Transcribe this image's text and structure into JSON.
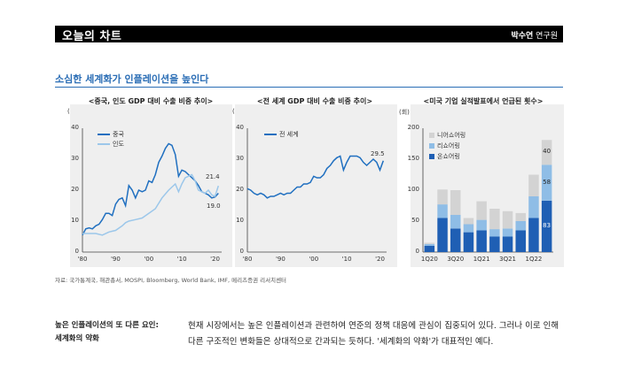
{
  "header": {
    "title": "오늘의 차트",
    "author_name": "박수연",
    "author_role": "연구원"
  },
  "headline": "소심한 세계화가 인플레이션을 높인다",
  "source": "자료: 국가통계국, 해관총서, MOSPI, Bloomberg, World Bank, IMF, 메리츠증권 리서치센터",
  "sidebar": {
    "line1": "높은 인플레이션의 또 다른 요인:",
    "line2": "세계화의 약화"
  },
  "body_text": "현재 시장에서는 높은 인플레이션과 관련하여 연준의 정책 대응에 관심이 집중되어 있다. 그러나 이로 인해 다른 구조적인 변화들은 상대적으로 간과되는 듯하다. '세계화의 약화'가 대표적인 예다.",
  "colors": {
    "accent": "#2a6db5",
    "china": "#1f6fc0",
    "india": "#9cc7ea",
    "world": "#1f6fc0",
    "near": "#d3d3d3",
    "reshore": "#8fbde6",
    "onshore": "#1f5fb4"
  },
  "chart_data": [
    {
      "type": "line",
      "title": "<중국, 인도 GDP 대비 수출 비중 추이>",
      "ylabel": "(%)",
      "ylim": [
        0,
        40
      ],
      "yticks": [
        "0",
        "10",
        "20",
        "30",
        "40"
      ],
      "xlim": [
        1980,
        2022
      ],
      "xticks": [
        {
          "v": 1980,
          "label": "'80"
        },
        {
          "v": 1990,
          "label": "'90"
        },
        {
          "v": 2000,
          "label": "'00"
        },
        {
          "v": 2010,
          "label": "'10"
        },
        {
          "v": 2020,
          "label": "'20"
        }
      ],
      "series": [
        {
          "name": "중국",
          "color": "#1f6fc0",
          "x": [
            1980,
            1981,
            1982,
            1983,
            1984,
            1985,
            1986,
            1987,
            1988,
            1989,
            1990,
            1991,
            1992,
            1993,
            1994,
            1995,
            1996,
            1997,
            1998,
            1999,
            2000,
            2001,
            2002,
            2003,
            2004,
            2005,
            2006,
            2007,
            2008,
            2009,
            2010,
            2011,
            2012,
            2013,
            2014,
            2015,
            2016,
            2017,
            2018,
            2019,
            2020,
            2021
          ],
          "values": [
            5.5,
            7.5,
            7.8,
            7.5,
            8.5,
            9.0,
            10.5,
            12.5,
            12.5,
            11.8,
            15.5,
            17.0,
            17.5,
            15.0,
            21.5,
            20.0,
            17.5,
            20.0,
            19.5,
            20.0,
            23.0,
            22.5,
            25.0,
            29.0,
            31.0,
            33.5,
            35.0,
            34.5,
            31.5,
            24.5,
            26.5,
            26.0,
            25.0,
            24.0,
            23.0,
            21.5,
            19.5,
            19.0,
            18.5,
            17.5,
            17.8,
            19.0
          ]
        },
        {
          "name": "인도",
          "color": "#9cc7ea",
          "x": [
            1980,
            1982,
            1984,
            1986,
            1988,
            1990,
            1992,
            1993,
            1994,
            1996,
            1998,
            2000,
            2002,
            2004,
            2006,
            2008,
            2009,
            2010,
            2011,
            2012,
            2013,
            2014,
            2015,
            2016,
            2017,
            2018,
            2019,
            2020,
            2021
          ],
          "values": [
            6.0,
            6.0,
            6.0,
            5.5,
            6.5,
            7.0,
            8.5,
            9.5,
            10.0,
            10.5,
            11.0,
            12.5,
            14.0,
            17.5,
            20.0,
            22.0,
            19.5,
            22.0,
            24.0,
            24.5,
            25.0,
            23.0,
            20.0,
            19.5,
            19.0,
            20.0,
            18.5,
            18.0,
            21.4
          ]
        }
      ],
      "labels": [
        "21.4",
        "19.0"
      ]
    },
    {
      "type": "line",
      "title": "<전 세계 GDP 대비 수출 비중 추이>",
      "ylabel": "(%)",
      "ylim": [
        0,
        40
      ],
      "yticks": [
        "0",
        "10",
        "20",
        "30",
        "40"
      ],
      "xlim": [
        1980,
        2022
      ],
      "xticks": [
        {
          "v": 1980,
          "label": "'80"
        },
        {
          "v": 1990,
          "label": "'90"
        },
        {
          "v": 2000,
          "label": "'00"
        },
        {
          "v": 2010,
          "label": "'10"
        },
        {
          "v": 2020,
          "label": "'20"
        }
      ],
      "series": [
        {
          "name": "전 세계",
          "color": "#1f6fc0",
          "x": [
            1980,
            1981,
            1982,
            1983,
            1984,
            1985,
            1986,
            1987,
            1988,
            1989,
            1990,
            1991,
            1992,
            1993,
            1994,
            1995,
            1996,
            1997,
            1998,
            1999,
            2000,
            2001,
            2002,
            2003,
            2004,
            2005,
            2006,
            2007,
            2008,
            2009,
            2010,
            2011,
            2012,
            2013,
            2014,
            2015,
            2016,
            2017,
            2018,
            2019,
            2020,
            2021
          ],
          "values": [
            20.5,
            20.0,
            19.0,
            18.5,
            19.0,
            18.5,
            17.5,
            18.0,
            18.0,
            18.5,
            19.0,
            18.5,
            19.0,
            19.0,
            20.0,
            21.0,
            21.0,
            22.0,
            22.0,
            22.5,
            24.5,
            24.0,
            24.0,
            25.0,
            27.0,
            28.0,
            29.5,
            30.5,
            31.0,
            26.5,
            29.0,
            31.0,
            31.0,
            31.0,
            30.5,
            29.0,
            28.0,
            29.0,
            30.0,
            29.0,
            26.5,
            29.5
          ]
        }
      ],
      "labels": [
        "29.5"
      ]
    },
    {
      "type": "bar",
      "stacked": true,
      "title": "<미국 기업 실적발표에서 언급된 횟수>",
      "ylabel": "(회)",
      "ylim": [
        0,
        200
      ],
      "yticks": [
        "0",
        "50",
        "100",
        "150",
        "200"
      ],
      "categories": [
        "1Q20",
        "2Q20",
        "3Q20",
        "4Q20",
        "1Q21",
        "2Q21",
        "3Q21",
        "4Q21",
        "1Q22",
        "2Q22"
      ],
      "xtick_labels": [
        "1Q20",
        "3Q20",
        "1Q21",
        "3Q21",
        "1Q22"
      ],
      "xtick_index": [
        0,
        2,
        4,
        6,
        8
      ],
      "series": [
        {
          "name": "온쇼어링",
          "color": "#1f5fb4",
          "values": [
            10,
            55,
            38,
            32,
            35,
            25,
            25,
            35,
            55,
            83
          ]
        },
        {
          "name": "리쇼어링",
          "color": "#8fbde6",
          "values": [
            3,
            22,
            22,
            13,
            17,
            12,
            13,
            15,
            35,
            58
          ]
        },
        {
          "name": "니어쇼어링",
          "color": "#d3d3d3",
          "values": [
            2,
            24,
            40,
            10,
            30,
            33,
            28,
            13,
            35,
            40
          ]
        }
      ],
      "labels": [
        "40",
        "58",
        "83"
      ]
    }
  ]
}
